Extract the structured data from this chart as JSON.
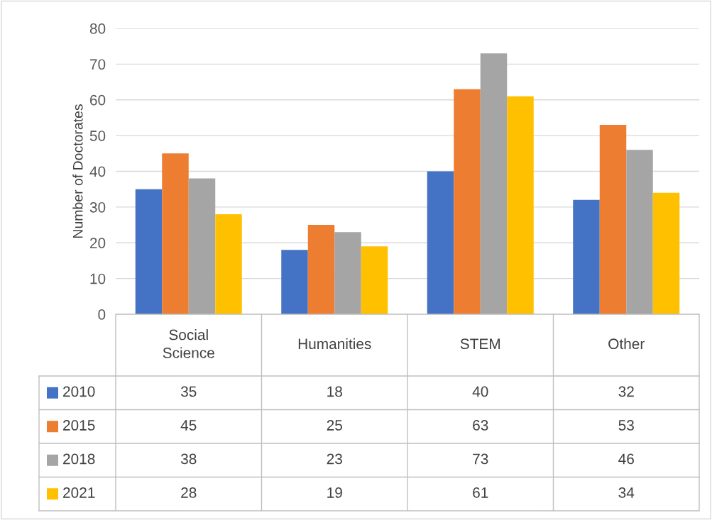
{
  "chart_data": {
    "type": "bar",
    "ylabel": "Number of Doctorates",
    "categories": [
      "Social Science",
      "Humanities",
      "STEM",
      "Other"
    ],
    "series": [
      {
        "name": "2010",
        "color": "#4472c4",
        "values": [
          35,
          18,
          40,
          32
        ]
      },
      {
        "name": "2015",
        "color": "#ed7d31",
        "values": [
          45,
          25,
          63,
          53
        ]
      },
      {
        "name": "2018",
        "color": "#a5a5a5",
        "values": [
          38,
          23,
          73,
          46
        ]
      },
      {
        "name": "2021",
        "color": "#ffc000",
        "values": [
          28,
          19,
          61,
          34
        ]
      }
    ],
    "ylim": [
      0,
      80
    ],
    "yticks": [
      0,
      10,
      20,
      30,
      40,
      50,
      60,
      70,
      80
    ],
    "grid": "y",
    "legend": "bottom left",
    "data_labels": true
  }
}
